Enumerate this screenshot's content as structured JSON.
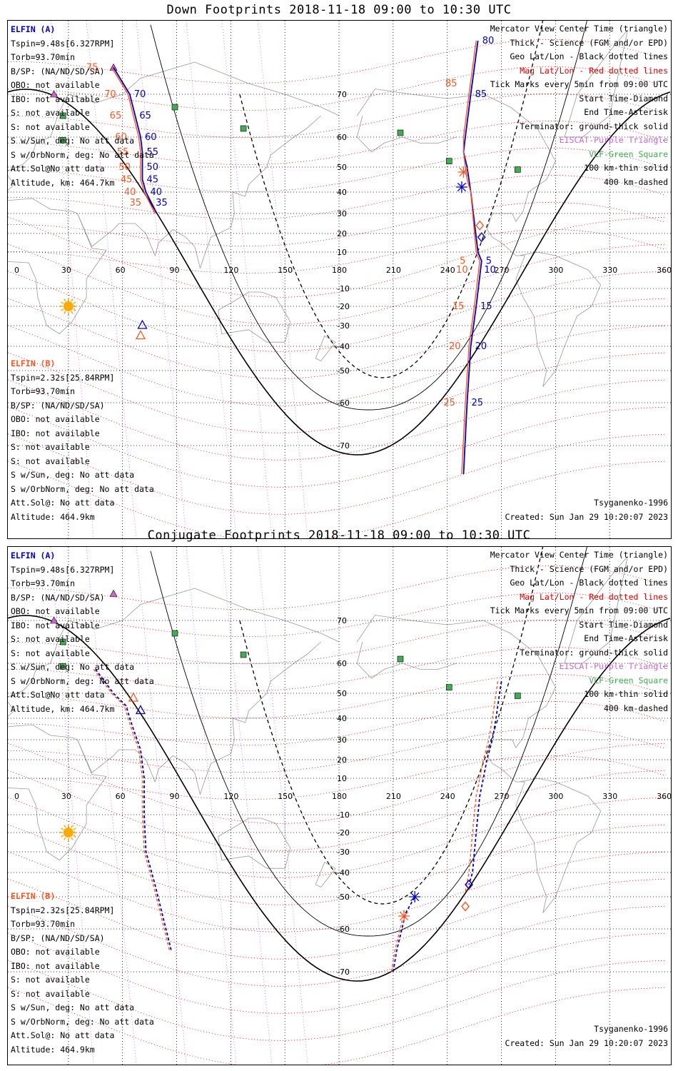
{
  "panels": [
    {
      "title": "Down Footprints 2018-11-18 09:00 to 10:30 UTC",
      "info_a": [
        "ELFIN (A)",
        "Tspin=9.48s[6.327RPM]",
        "Torb=93.70min",
        "B/SP: (NA/ND/SD/SA)",
        "OBO: not available",
        "IBO: not available",
        "S: not available",
        "S: not available",
        "S w/Sun, deg: No att data",
        "S w/OrbNorm, deg: No att data",
        "Att.Sol@No att data",
        "Altitude, km: 464.7km"
      ],
      "info_b": [
        "ELFIN (B)",
        "Tspin=2.32s[25.84RPM]",
        "Torb=93.70min",
        "B/SP: (NA/ND/SD/SA)",
        "OBO: not available",
        "IBO: not available",
        "S: not available",
        "S: not available",
        "S w/Sun, deg: No att data",
        "S w/OrbNorm, deg: No att data",
        "Att.Sol@: No att data",
        "Altitude: 464.9km"
      ],
      "legend": [
        "Mercator View Center Time (triangle)",
        "Thick - Science (FGM and/or EPD)",
        "Geo Lat/Lon - Black dotted lines",
        "Mag Lat/Lon - Red dotted lines",
        "Tick Marks every 5min from 09:00 UTC",
        "Start Time-Diamond",
        "End Time-Asterisk",
        "Terminator: ground-thick solid",
        "EISCAT-Purple Triangle",
        "VLF-Green Square",
        "100 km-thin solid",
        "400 km-dashed"
      ],
      "footer": [
        "Tsyganenko-1996",
        "Created: Sun Jan 29 10:20:07 2023"
      ]
    },
    {
      "title": "Conjugate Footprints 2018-11-18 09:00 to 10:30 UTC",
      "info_a": [
        "ELFIN (A)",
        "Tspin=9.48s[6.327RPM]",
        "Torb=93.70min",
        "B/SP: (NA/ND/SD/SA)",
        "OBO: not available",
        "IBO: not available",
        "S: not available",
        "S: not available",
        "S w/Sun, deg: No att data",
        "S w/OrbNorm, deg: No att data",
        "Att.Sol@No att data",
        "Altitude, km: 464.7km"
      ],
      "info_b": [
        "ELFIN (B)",
        "Tspin=2.32s[25.84RPM]",
        "Torb=93.70min",
        "B/SP: (NA/ND/SD/SA)",
        "OBO: not available",
        "IBO: not available",
        "S: not available",
        "S: not available",
        "S w/Sun, deg: No att data",
        "S w/OrbNorm, deg: No att data",
        "Att.Sol@: No att data",
        "Altitude: 464.9km"
      ],
      "legend": [
        "Mercator View Center Time (triangle)",
        "Thick - Science (FGM and/or EPD)",
        "Geo Lat/Lon - Black dotted lines",
        "Mag Lat/Lon - Red dotted lines",
        "Tick Marks every 5min from 09:00 UTC",
        "Start Time-Diamond",
        "End Time-Asterisk",
        "Terminator: ground-thick solid",
        "EISCAT-Purple Triangle",
        "VLF-Green Square",
        "100 km-thin solid",
        "400 km-dashed"
      ],
      "footer": [
        "Tsyganenko-1996",
        "Created: Sun Jan 29 10:20:07 2023"
      ]
    }
  ],
  "colors": {
    "elfin_a": "#0000cc",
    "elfin_b": "#ff5522",
    "mag_grid": "#dd0000",
    "geo_grid": "#000000",
    "eiscat": "#cc66cc",
    "vlf": "#44aa55",
    "sun": "#ffaa00",
    "coast": "#999999"
  },
  "chart_data": [
    {
      "type": "line",
      "title": "Down Footprints 2018-11-18 09:00 to 10:30 UTC",
      "x_ticks": [
        0,
        30,
        60,
        90,
        120,
        150,
        180,
        210,
        240,
        270,
        300,
        330,
        360
      ],
      "y_ticks": [
        70,
        60,
        50,
        40,
        30,
        20,
        10,
        -10,
        -20,
        -30,
        -40,
        -50,
        -60,
        -70
      ],
      "series": [
        {
          "name": "ELFIN (A)",
          "color": "#0000cc",
          "tracks": [
            [
              [
                55,
                75
              ],
              [
                64,
                70
              ],
              [
                67,
                65
              ],
              [
                70,
                60
              ],
              [
                71,
                55
              ],
              [
                71,
                50
              ],
              [
                71,
                45
              ],
              [
                73,
                40
              ],
              [
                76,
                35
              ],
              [
                79,
                30
              ]
            ],
            [
              [
                257,
                80
              ],
              [
                253,
                70
              ],
              [
                250,
                60
              ],
              [
                249,
                55
              ],
              [
                251,
                50
              ],
              [
                252,
                45
              ],
              [
                253,
                40
              ],
              [
                257,
                10
              ],
              [
                259,
                5
              ],
              [
                256,
                -20
              ],
              [
                253,
                -40
              ],
              [
                251,
                -60
              ],
              [
                249,
                -75
              ]
            ]
          ],
          "tick_labels": [
            {
              "t": "70",
              "lon": 64,
              "lat": 70
            },
            {
              "t": "65",
              "lon": 67,
              "lat": 65
            },
            {
              "t": "60",
              "lon": 70,
              "lat": 60
            },
            {
              "t": "55",
              "lon": 71,
              "lat": 55
            },
            {
              "t": "50",
              "lon": 71,
              "lat": 50
            },
            {
              "t": "45",
              "lon": 71,
              "lat": 45
            },
            {
              "t": "40",
              "lon": 73,
              "lat": 40
            },
            {
              "t": "35",
              "lon": 76,
              "lat": 35
            },
            {
              "t": "80",
              "lon": 257,
              "lat": 80
            },
            {
              "t": "85",
              "lon": 253,
              "lat": 70
            },
            {
              "t": "5",
              "lon": 259,
              "lat": 5
            },
            {
              "t": "10",
              "lon": 258,
              "lat": 0
            },
            {
              "t": "15",
              "lon": 256,
              "lat": -20
            },
            {
              "t": "20",
              "lon": 253,
              "lat": -40
            },
            {
              "t": "25",
              "lon": 251,
              "lat": -60
            }
          ]
        },
        {
          "name": "ELFIN (B)",
          "color": "#ff5522",
          "tracks": [
            [
              [
                54,
                75
              ],
              [
                63,
                70
              ],
              [
                66,
                65
              ],
              [
                69,
                60
              ],
              [
                70,
                55
              ],
              [
                70,
                50
              ],
              [
                70,
                45
              ],
              [
                72,
                40
              ],
              [
                75,
                35
              ],
              [
                78,
                30
              ]
            ],
            [
              [
                256,
                80
              ],
              [
                252,
                70
              ],
              [
                249,
                60
              ],
              [
                249,
                55
              ],
              [
                250,
                50
              ],
              [
                251,
                45
              ],
              [
                253,
                40
              ],
              [
                256,
                10
              ],
              [
                258,
                5
              ],
              [
                255,
                -20
              ],
              [
                252,
                -40
              ],
              [
                250,
                -60
              ],
              [
                248,
                -75
              ]
            ]
          ],
          "tick_labels": [
            {
              "t": "75",
              "lon": 47,
              "lat": 75
            },
            {
              "t": "70",
              "lon": 57,
              "lat": 70
            },
            {
              "t": "65",
              "lon": 60,
              "lat": 65
            },
            {
              "t": "60",
              "lon": 63,
              "lat": 60
            },
            {
              "t": "55",
              "lon": 64,
              "lat": 55
            },
            {
              "t": "50",
              "lon": 65,
              "lat": 50
            },
            {
              "t": "45",
              "lon": 66,
              "lat": 45
            },
            {
              "t": "40",
              "lon": 68,
              "lat": 40
            },
            {
              "t": "35",
              "lon": 71,
              "lat": 35
            },
            {
              "t": "85",
              "lon": 246,
              "lat": 72
            },
            {
              "t": "5",
              "lon": 254,
              "lat": 5
            },
            {
              "t": "10",
              "lon": 252,
              "lat": 0
            },
            {
              "t": "15",
              "lon": 250,
              "lat": -20
            },
            {
              "t": "20",
              "lon": 248,
              "lat": -40
            },
            {
              "t": "25",
              "lon": 245,
              "lat": -60
            }
          ]
        }
      ]
    },
    {
      "type": "line",
      "title": "Conjugate Footprints 2018-11-18 09:00 to 10:30 UTC",
      "x_ticks": [
        0,
        30,
        60,
        90,
        120,
        150,
        180,
        210,
        240,
        270,
        300,
        330,
        360
      ],
      "y_ticks": [
        70,
        60,
        50,
        40,
        30,
        20,
        10,
        -10,
        -20,
        -30,
        -40,
        -50,
        -60,
        -70
      ],
      "series": [
        {
          "name": "ELFIN (A)",
          "color": "#0000cc",
          "tracks": [
            [
              [
                45,
                58
              ],
              [
                55,
                50
              ],
              [
                62,
                45
              ],
              [
                64,
                40
              ],
              [
                66,
                35
              ],
              [
                70,
                25
              ],
              [
                72,
                10
              ],
              [
                72,
                -10
              ],
              [
                73,
                -30
              ],
              [
                78,
                -45
              ],
              [
                87,
                -65
              ]
            ],
            [
              [
                210,
                -70
              ],
              [
                212,
                -65
              ],
              [
                217,
                -55
              ],
              [
                222,
                -50
              ]
            ],
            [
              [
                270,
                54
              ],
              [
                269,
                50
              ],
              [
                267,
                40
              ],
              [
                265,
                30
              ],
              [
                262,
                20
              ],
              [
                260,
                10
              ],
              [
                258,
                0
              ],
              [
                256,
                -20
              ],
              [
                254,
                -40
              ],
              [
                252,
                -45
              ]
            ]
          ]
        },
        {
          "name": "ELFIN (B)",
          "color": "#ff5522",
          "tracks": [
            [
              [
                44,
                58
              ],
              [
                54,
                50
              ],
              [
                61,
                45
              ],
              [
                63,
                40
              ],
              [
                65,
                35
              ],
              [
                69,
                25
              ],
              [
                71,
                10
              ],
              [
                71,
                -10
              ],
              [
                72,
                -30
              ],
              [
                77,
                -45
              ],
              [
                86,
                -65
              ]
            ],
            [
              [
                209,
                -70
              ],
              [
                211,
                -65
              ],
              [
                216,
                -55
              ]
            ],
            [
              [
                268,
                54
              ],
              [
                267,
                50
              ],
              [
                265,
                40
              ],
              [
                263,
                30
              ],
              [
                260,
                20
              ],
              [
                258,
                10
              ],
              [
                256,
                0
              ],
              [
                254,
                -20
              ],
              [
                252,
                -40
              ],
              [
                250,
                -48
              ]
            ]
          ]
        }
      ]
    }
  ]
}
